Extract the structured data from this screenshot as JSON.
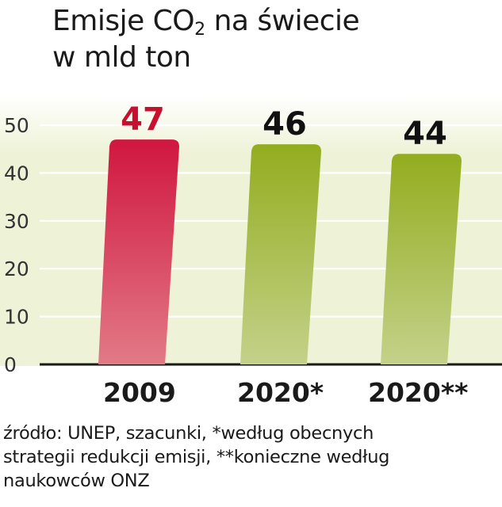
{
  "title_line1_pre": "Emisje CO",
  "title_line1_sub": "2",
  "title_line1_post": " na świecie",
  "title_line2": "w mld ton",
  "chart_data": {
    "type": "bar",
    "categories": [
      "2009",
      "2020*",
      "2020**"
    ],
    "values": [
      47,
      46,
      44
    ],
    "value_labels": [
      "47",
      "46",
      "44"
    ],
    "ylim": [
      0,
      50
    ],
    "yticks": [
      "0",
      "10",
      "20",
      "30",
      "40",
      "50"
    ],
    "grid": true,
    "colors": [
      "#cf1d45",
      "#9ab22a",
      "#9ab22a"
    ],
    "value_label_colors": [
      "#c8102e",
      "#111111",
      "#111111"
    ]
  },
  "source_lines": [
    "źródło: UNEP, szacunki, *według obecnych",
    "strategii redukcji emisji, **konieczne według",
    "naukowców ONZ"
  ]
}
